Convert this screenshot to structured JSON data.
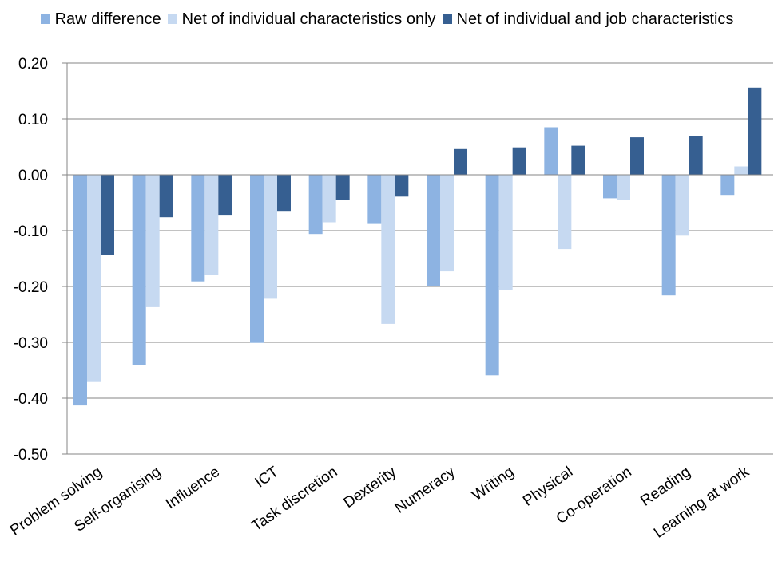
{
  "chart_data": {
    "type": "bar",
    "title": "",
    "xlabel": "",
    "ylabel": "",
    "ylim": [
      -0.5,
      0.2
    ],
    "yticks": [
      "0.20",
      "0.10",
      "0.00",
      "-0.10",
      "-0.20",
      "-0.30",
      "-0.40",
      "-0.50"
    ],
    "ytick_values": [
      0.2,
      0.1,
      0.0,
      -0.1,
      -0.2,
      -0.3,
      -0.4,
      -0.5
    ],
    "grid": true,
    "legend_position": "top",
    "categories": [
      "Problem solving",
      "Self-organising",
      "Influence",
      "ICT",
      "Task discretion",
      "Dexterity",
      "Numeracy",
      "Writing",
      "Physical",
      "Co-operation",
      "Reading",
      "Learning at work"
    ],
    "series": [
      {
        "name": "Raw difference",
        "color": "#8db3e2",
        "values": [
          -0.413,
          -0.34,
          -0.191,
          -0.301,
          -0.106,
          -0.088,
          -0.2,
          -0.359,
          0.085,
          -0.042,
          -0.216,
          -0.036
        ]
      },
      {
        "name": "Net of individual characteristics only",
        "color": "#c6d9f1",
        "values": [
          -0.371,
          -0.237,
          -0.179,
          -0.222,
          -0.085,
          -0.267,
          -0.173,
          -0.206,
          -0.133,
          -0.045,
          -0.109,
          0.015
        ]
      },
      {
        "name": "Net of individual and job characteristics",
        "color": "#365f91",
        "values": [
          -0.143,
          -0.076,
          -0.073,
          -0.066,
          -0.045,
          -0.039,
          0.046,
          0.049,
          0.052,
          0.067,
          0.07,
          0.156
        ]
      }
    ]
  }
}
